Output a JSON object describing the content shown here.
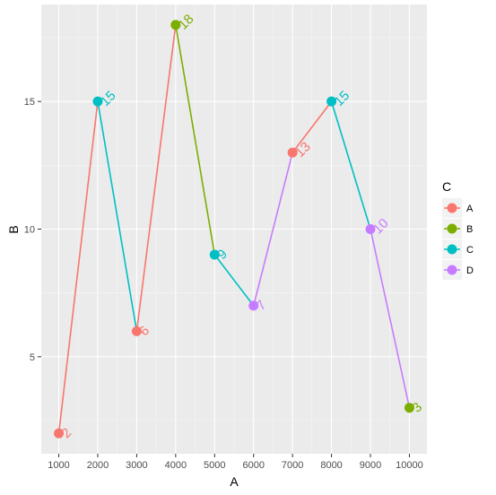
{
  "chart_data": {
    "type": "line",
    "xlabel": "A",
    "ylabel": "B",
    "xlim": [
      550,
      10450
    ],
    "ylim": [
      1.2,
      18.8
    ],
    "x_ticks": [
      1000,
      2000,
      3000,
      4000,
      5000,
      6000,
      7000,
      8000,
      9000,
      10000
    ],
    "y_ticks": [
      5,
      10,
      15
    ],
    "grid": true,
    "legend": {
      "title": "C",
      "position": "right",
      "entries": [
        {
          "name": "A",
          "color": "#F8766D"
        },
        {
          "name": "B",
          "color": "#7CAE00"
        },
        {
          "name": "C",
          "color": "#00BFC4"
        },
        {
          "name": "D",
          "color": "#C77CFF"
        }
      ]
    },
    "points": [
      {
        "x": 1000,
        "y": 2,
        "group": "A",
        "label": "2"
      },
      {
        "x": 2000,
        "y": 15,
        "group": "C",
        "label": "15"
      },
      {
        "x": 3000,
        "y": 6,
        "group": "A",
        "label": "6"
      },
      {
        "x": 4000,
        "y": 18,
        "group": "B",
        "label": "18"
      },
      {
        "x": 5000,
        "y": 9,
        "group": "C",
        "label": "9"
      },
      {
        "x": 6000,
        "y": 7,
        "group": "D",
        "label": "7"
      },
      {
        "x": 7000,
        "y": 13,
        "group": "A",
        "label": "13"
      },
      {
        "x": 8000,
        "y": 15,
        "group": "C",
        "label": "15"
      },
      {
        "x": 9000,
        "y": 10,
        "group": "D",
        "label": "10"
      },
      {
        "x": 10000,
        "y": 3,
        "group": "B",
        "label": "3"
      }
    ]
  }
}
